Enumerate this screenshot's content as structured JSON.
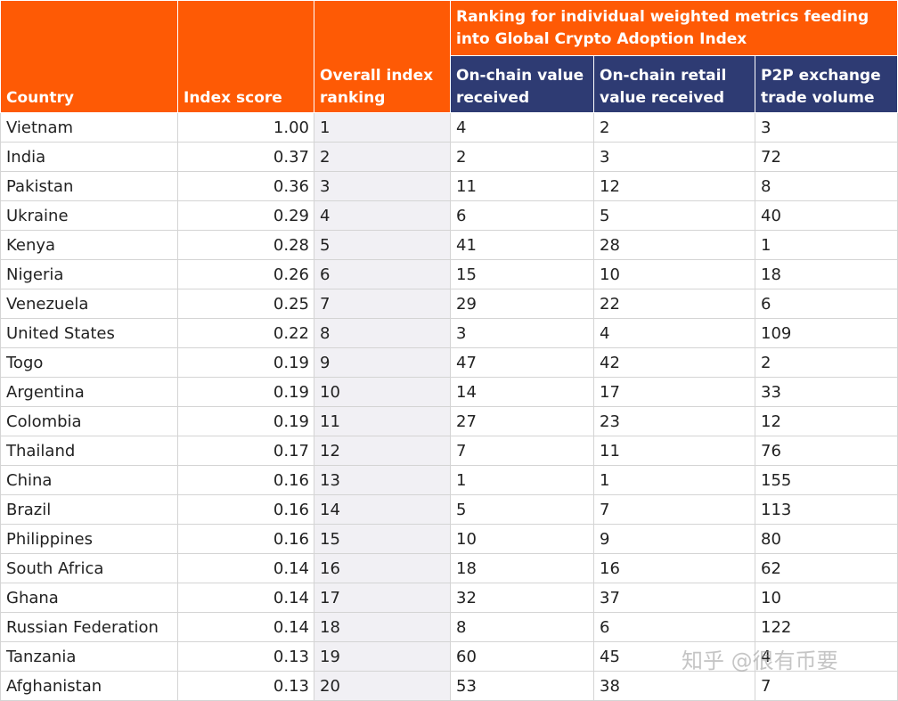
{
  "headers": {
    "country": "Country",
    "index_score": "Index score",
    "overall_ranking": "Overall index ranking",
    "group": "Ranking for individual weighted metrics feeding into Global Crypto Adoption Index",
    "onchain_value": "On-chain value received",
    "onchain_retail": "On-chain retail value received",
    "p2p_volume": "P2P exchange trade volume"
  },
  "rows": [
    {
      "country": "Vietnam",
      "score": "1.00",
      "rank": "1",
      "onchain": "4",
      "retail": "2",
      "p2p": "3"
    },
    {
      "country": "India",
      "score": "0.37",
      "rank": "2",
      "onchain": "2",
      "retail": "3",
      "p2p": "72"
    },
    {
      "country": "Pakistan",
      "score": "0.36",
      "rank": "3",
      "onchain": "11",
      "retail": "12",
      "p2p": "8"
    },
    {
      "country": "Ukraine",
      "score": "0.29",
      "rank": "4",
      "onchain": "6",
      "retail": "5",
      "p2p": "40"
    },
    {
      "country": "Kenya",
      "score": "0.28",
      "rank": "5",
      "onchain": "41",
      "retail": "28",
      "p2p": "1"
    },
    {
      "country": "Nigeria",
      "score": "0.26",
      "rank": "6",
      "onchain": "15",
      "retail": "10",
      "p2p": "18"
    },
    {
      "country": "Venezuela",
      "score": "0.25",
      "rank": "7",
      "onchain": "29",
      "retail": "22",
      "p2p": "6"
    },
    {
      "country": "United States",
      "score": "0.22",
      "rank": "8",
      "onchain": "3",
      "retail": "4",
      "p2p": "109"
    },
    {
      "country": "Togo",
      "score": "0.19",
      "rank": "9",
      "onchain": "47",
      "retail": "42",
      "p2p": "2"
    },
    {
      "country": "Argentina",
      "score": "0.19",
      "rank": "10",
      "onchain": "14",
      "retail": "17",
      "p2p": "33"
    },
    {
      "country": "Colombia",
      "score": "0.19",
      "rank": "11",
      "onchain": "27",
      "retail": "23",
      "p2p": "12"
    },
    {
      "country": "Thailand",
      "score": "0.17",
      "rank": "12",
      "onchain": "7",
      "retail": "11",
      "p2p": "76"
    },
    {
      "country": "China",
      "score": "0.16",
      "rank": "13",
      "onchain": "1",
      "retail": "1",
      "p2p": "155"
    },
    {
      "country": "Brazil",
      "score": "0.16",
      "rank": "14",
      "onchain": "5",
      "retail": "7",
      "p2p": "113"
    },
    {
      "country": "Philippines",
      "score": "0.16",
      "rank": "15",
      "onchain": "10",
      "retail": "9",
      "p2p": "80"
    },
    {
      "country": "South Africa",
      "score": "0.14",
      "rank": "16",
      "onchain": "18",
      "retail": "16",
      "p2p": "62"
    },
    {
      "country": "Ghana",
      "score": "0.14",
      "rank": "17",
      "onchain": "32",
      "retail": "37",
      "p2p": "10"
    },
    {
      "country": "Russian Federation",
      "score": "0.14",
      "rank": "18",
      "onchain": "8",
      "retail": "6",
      "p2p": "122"
    },
    {
      "country": "Tanzania",
      "score": "0.13",
      "rank": "19",
      "onchain": "60",
      "retail": "45",
      "p2p": "4"
    },
    {
      "country": "Afghanistan",
      "score": "0.13",
      "rank": "20",
      "onchain": "53",
      "retail": "38",
      "p2p": "7"
    }
  ],
  "watermark": "知乎 @很有币要",
  "colors": {
    "header_orange": "#fe5a05",
    "header_navy": "#2e3b73",
    "rank_column_bg": "#f1f0f4"
  }
}
